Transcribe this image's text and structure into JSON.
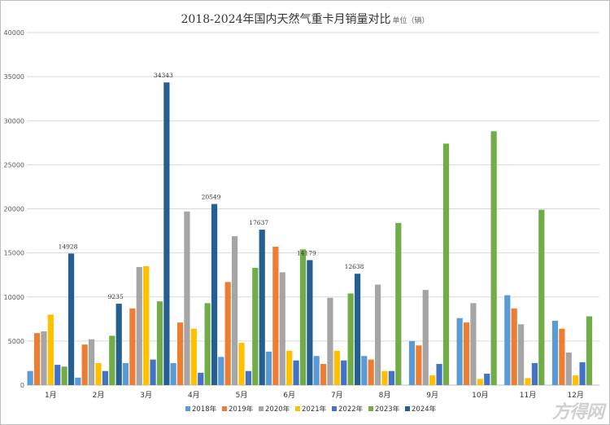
{
  "chart_data": {
    "type": "bar",
    "title": "2018-2024年国内天然气重卡月销量对比",
    "unit_note": "单位（辆）",
    "categories": [
      "1月",
      "2月",
      "3月",
      "4月",
      "5月",
      "6月",
      "7月",
      "8月",
      "9月",
      "10月",
      "11月",
      "12月"
    ],
    "ylim": [
      0,
      40000
    ],
    "yticks": [
      0,
      5000,
      10000,
      15000,
      20000,
      25000,
      30000,
      35000,
      40000
    ],
    "grid": true,
    "legend_placement": "bottom",
    "series": [
      {
        "name": "2018年",
        "color": "#5b9bd5",
        "values": [
          1600,
          850,
          2500,
          2500,
          3200,
          3800,
          3300,
          3300,
          5000,
          7600,
          10200,
          7300
        ]
      },
      {
        "name": "2019年",
        "color": "#ed7d31",
        "values": [
          5900,
          4600,
          8700,
          7100,
          11700,
          15700,
          2400,
          2900,
          4500,
          7100,
          8700,
          6400
        ]
      },
      {
        "name": "2020年",
        "color": "#a5a5a5",
        "values": [
          6100,
          5200,
          13400,
          19700,
          16900,
          12800,
          9900,
          11400,
          10800,
          9300,
          6900,
          3700
        ]
      },
      {
        "name": "2021年",
        "color": "#ffc000",
        "values": [
          8000,
          2500,
          13500,
          6400,
          4800,
          3900,
          3900,
          1600,
          1100,
          700,
          800,
          1100
        ]
      },
      {
        "name": "2022年",
        "color": "#4472c4",
        "values": [
          2300,
          1600,
          2900,
          1400,
          1600,
          2800,
          2800,
          1600,
          2400,
          1300,
          2500,
          2600
        ]
      },
      {
        "name": "2023年",
        "color": "#70ad47",
        "values": [
          2100,
          5600,
          9500,
          9300,
          13300,
          15400,
          10400,
          18400,
          27400,
          28800,
          19900,
          7800
        ]
      },
      {
        "name": "2024年",
        "color": "#255e91",
        "values": [
          14928,
          9235,
          34343,
          20549,
          17637,
          14179,
          12638,
          null,
          null,
          null,
          null,
          null
        ]
      }
    ],
    "data_labels": {
      "series": "2024年",
      "values": [
        "14928",
        "9235",
        "34343",
        "20549",
        "17637",
        "14179",
        "12638"
      ]
    }
  },
  "watermark": "方得网"
}
